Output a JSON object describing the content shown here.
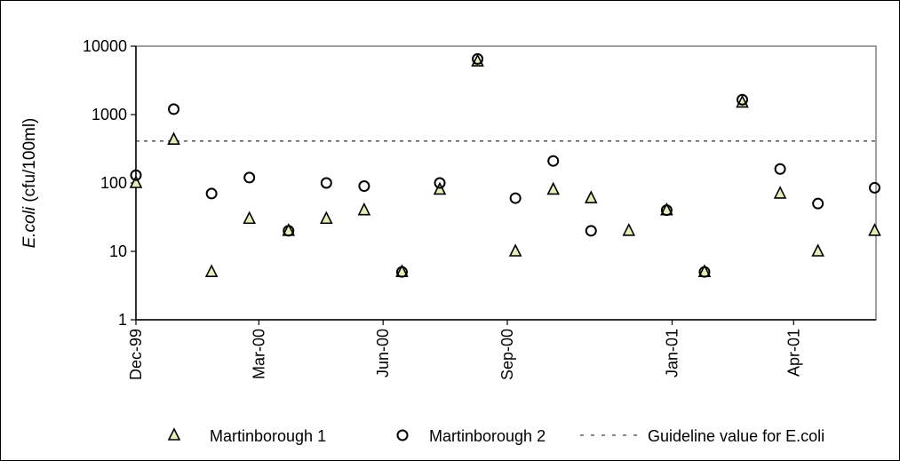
{
  "chart_data": {
    "type": "scatter",
    "title": "",
    "xlabel": "",
    "ylabel_italic": "E.coli",
    "ylabel_rest": " (cfu/100ml)",
    "yscale": "log",
    "ylim": [
      1,
      10000
    ],
    "xlim": [
      "1999-12-01",
      "2001-06-01"
    ],
    "y_ticks": [
      {
        "value": 1,
        "label": "1"
      },
      {
        "value": 10,
        "label": "10"
      },
      {
        "value": 100,
        "label": "100"
      },
      {
        "value": 1000,
        "label": "1000"
      },
      {
        "value": 10000,
        "label": "10000"
      }
    ],
    "x_ticks": [
      {
        "date": "1999-12-01",
        "label": "Dec-99"
      },
      {
        "date": "2000-03-01",
        "label": "Mar-00"
      },
      {
        "date": "2000-06-01",
        "label": "Jun-00"
      },
      {
        "date": "2000-09-01",
        "label": "Sep-00"
      },
      {
        "date": "2001-01-01",
        "label": "Jan-01"
      },
      {
        "date": "2001-04-01",
        "label": "Apr-01"
      }
    ],
    "guideline": {
      "name": "Guideline value for E.coli",
      "value": 410,
      "color": "#444444"
    },
    "series": [
      {
        "name": "Martinborough 1",
        "marker": "triangle",
        "color": "#e8ecb8",
        "points": [
          {
            "x": "1999-12-01",
            "y": 100
          },
          {
            "x": "1999-12-29",
            "y": 430
          },
          {
            "x": "2000-01-26",
            "y": 5
          },
          {
            "x": "2000-02-23",
            "y": 30
          },
          {
            "x": "2000-03-23",
            "y": 20
          },
          {
            "x": "2000-04-20",
            "y": 30
          },
          {
            "x": "2000-05-18",
            "y": 40
          },
          {
            "x": "2000-06-15",
            "y": 5
          },
          {
            "x": "2000-07-13",
            "y": 80
          },
          {
            "x": "2000-08-10",
            "y": 6000
          },
          {
            "x": "2000-09-07",
            "y": 10
          },
          {
            "x": "2000-10-05",
            "y": 80
          },
          {
            "x": "2000-11-02",
            "y": 60
          },
          {
            "x": "2000-11-30",
            "y": 20
          },
          {
            "x": "2000-12-28",
            "y": 40
          },
          {
            "x": "2001-01-25",
            "y": 5
          },
          {
            "x": "2001-02-22",
            "y": 1500
          },
          {
            "x": "2001-03-22",
            "y": 70
          },
          {
            "x": "2001-04-19",
            "y": 10
          },
          {
            "x": "2001-05-31",
            "y": 20
          }
        ]
      },
      {
        "name": "Martinborough 2",
        "marker": "circle",
        "color": "#ffffff",
        "points": [
          {
            "x": "1999-12-01",
            "y": 130
          },
          {
            "x": "1999-12-29",
            "y": 1200
          },
          {
            "x": "2000-01-26",
            "y": 70
          },
          {
            "x": "2000-02-23",
            "y": 120
          },
          {
            "x": "2000-03-23",
            "y": 20
          },
          {
            "x": "2000-04-20",
            "y": 100
          },
          {
            "x": "2000-05-18",
            "y": 90
          },
          {
            "x": "2000-06-15",
            "y": 5
          },
          {
            "x": "2000-07-13",
            "y": 100
          },
          {
            "x": "2000-08-10",
            "y": 6500
          },
          {
            "x": "2000-09-07",
            "y": 60
          },
          {
            "x": "2000-10-05",
            "y": 210
          },
          {
            "x": "2000-11-02",
            "y": 20
          },
          {
            "x": "2000-12-28",
            "y": 40
          },
          {
            "x": "2001-01-25",
            "y": 5
          },
          {
            "x": "2001-02-22",
            "y": 1650
          },
          {
            "x": "2001-03-22",
            "y": 160
          },
          {
            "x": "2001-04-19",
            "y": 50
          },
          {
            "x": "2001-05-31",
            "y": 85
          }
        ]
      }
    ],
    "legend_position": "bottom",
    "grid": false,
    "plot_background": "#ffffff",
    "plot_border_color": "#808080"
  }
}
